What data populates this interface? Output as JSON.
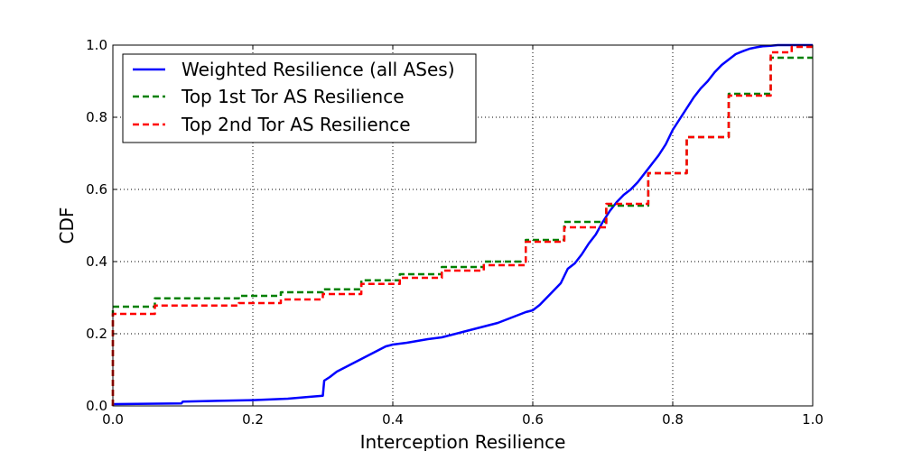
{
  "chart_data": {
    "type": "line",
    "title": "",
    "xlabel": "Interception Resilience",
    "ylabel": "CDF",
    "xlim": [
      0.0,
      1.0
    ],
    "ylim": [
      0.0,
      1.0
    ],
    "xticks": [
      "0.0",
      "0.2",
      "0.4",
      "0.6",
      "0.8",
      "1.0"
    ],
    "yticks": [
      "0.0",
      "0.2",
      "0.4",
      "0.6",
      "0.8",
      "1.0"
    ],
    "grid": true,
    "legend_position": "top-left",
    "series": [
      {
        "name": "Weighted Resilience (all ASes)",
        "color": "#0000ff",
        "style": "solid",
        "x": [
          0.0,
          0.0,
          0.05,
          0.098,
          0.1,
          0.15,
          0.2,
          0.25,
          0.28,
          0.3,
          0.302,
          0.31,
          0.32,
          0.33,
          0.34,
          0.35,
          0.36,
          0.37,
          0.38,
          0.39,
          0.4,
          0.42,
          0.45,
          0.47,
          0.5,
          0.52,
          0.55,
          0.57,
          0.59,
          0.6,
          0.61,
          0.62,
          0.63,
          0.64,
          0.645,
          0.65,
          0.66,
          0.67,
          0.68,
          0.69,
          0.7,
          0.71,
          0.72,
          0.73,
          0.74,
          0.75,
          0.76,
          0.77,
          0.78,
          0.79,
          0.8,
          0.81,
          0.82,
          0.83,
          0.84,
          0.85,
          0.86,
          0.87,
          0.88,
          0.89,
          0.9,
          0.91,
          0.92,
          0.93,
          0.94,
          0.95,
          0.97,
          1.0
        ],
        "y": [
          0.0,
          0.005,
          0.006,
          0.007,
          0.012,
          0.014,
          0.016,
          0.02,
          0.025,
          0.028,
          0.07,
          0.08,
          0.095,
          0.105,
          0.115,
          0.125,
          0.135,
          0.145,
          0.155,
          0.165,
          0.17,
          0.175,
          0.185,
          0.19,
          0.205,
          0.215,
          0.23,
          0.245,
          0.26,
          0.265,
          0.28,
          0.3,
          0.32,
          0.34,
          0.36,
          0.38,
          0.395,
          0.42,
          0.45,
          0.475,
          0.51,
          0.54,
          0.565,
          0.585,
          0.6,
          0.62,
          0.645,
          0.67,
          0.695,
          0.725,
          0.765,
          0.795,
          0.825,
          0.855,
          0.88,
          0.9,
          0.925,
          0.945,
          0.96,
          0.975,
          0.983,
          0.99,
          0.994,
          0.997,
          0.998,
          1.0,
          1.0,
          1.0
        ]
      },
      {
        "name": "Top 1st Tor AS Resilience",
        "color": "#008000",
        "style": "dashed",
        "x": [
          0.0,
          0.0,
          0.06,
          0.06,
          0.18,
          0.18,
          0.24,
          0.24,
          0.3,
          0.3,
          0.355,
          0.355,
          0.41,
          0.41,
          0.47,
          0.47,
          0.53,
          0.53,
          0.59,
          0.59,
          0.645,
          0.645,
          0.705,
          0.705,
          0.765,
          0.765,
          0.82,
          0.82,
          0.88,
          0.88,
          0.94,
          0.94,
          1.0
        ],
        "y": [
          0.0,
          0.275,
          0.275,
          0.298,
          0.298,
          0.305,
          0.305,
          0.315,
          0.315,
          0.323,
          0.323,
          0.348,
          0.348,
          0.365,
          0.365,
          0.385,
          0.385,
          0.4,
          0.4,
          0.46,
          0.46,
          0.51,
          0.51,
          0.555,
          0.555,
          0.645,
          0.645,
          0.745,
          0.745,
          0.865,
          0.865,
          0.965,
          0.965
        ]
      },
      {
        "name": "Top 2nd Tor AS Resilience",
        "color": "#ff0000",
        "style": "dashed",
        "x": [
          0.0,
          0.0,
          0.06,
          0.06,
          0.18,
          0.18,
          0.24,
          0.24,
          0.3,
          0.3,
          0.355,
          0.355,
          0.41,
          0.41,
          0.47,
          0.47,
          0.53,
          0.53,
          0.59,
          0.59,
          0.645,
          0.645,
          0.705,
          0.705,
          0.765,
          0.765,
          0.82,
          0.82,
          0.88,
          0.88,
          0.94,
          0.94,
          0.97,
          0.97,
          1.0
        ],
        "y": [
          0.0,
          0.255,
          0.255,
          0.278,
          0.278,
          0.285,
          0.285,
          0.295,
          0.295,
          0.31,
          0.31,
          0.338,
          0.338,
          0.355,
          0.355,
          0.375,
          0.375,
          0.39,
          0.39,
          0.455,
          0.455,
          0.495,
          0.495,
          0.56,
          0.56,
          0.645,
          0.645,
          0.745,
          0.745,
          0.86,
          0.86,
          0.98,
          0.98,
          0.995,
          0.995
        ]
      }
    ]
  }
}
